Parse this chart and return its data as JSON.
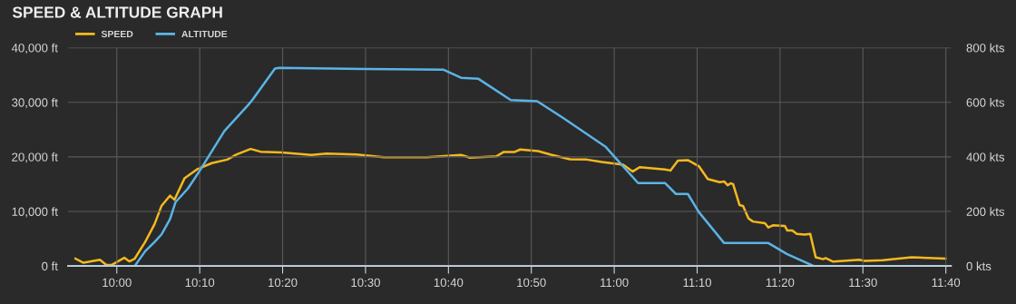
{
  "chart_data": {
    "type": "line",
    "title": "SPEED & ALTITUDE GRAPH",
    "xlim": [
      9.902,
      11.677
    ],
    "xticks": [
      {
        "value": 10.0,
        "label": "10:00"
      },
      {
        "value": 10.1667,
        "label": "10:10"
      },
      {
        "value": 10.3333,
        "label": "10:20"
      },
      {
        "value": 10.5,
        "label": "10:30"
      },
      {
        "value": 10.6667,
        "label": "10:40"
      },
      {
        "value": 10.8333,
        "label": "10:50"
      },
      {
        "value": 11.0,
        "label": "11:00"
      },
      {
        "value": 11.1667,
        "label": "11:10"
      },
      {
        "value": 11.3333,
        "label": "11:20"
      },
      {
        "value": 11.5,
        "label": "11:30"
      },
      {
        "value": 11.6667,
        "label": "11:40"
      }
    ],
    "ylim": [
      0,
      40000
    ],
    "yticks": [
      {
        "value": 0,
        "label": "0 ft"
      },
      {
        "value": 10000,
        "label": "10,000 ft"
      },
      {
        "value": 20000,
        "label": "20,000 ft"
      },
      {
        "value": 30000,
        "label": "30,000 ft"
      },
      {
        "value": 40000,
        "label": "40,000 ft"
      }
    ],
    "y2lim": [
      0,
      800
    ],
    "y2ticks": [
      {
        "value": 0,
        "label": "0 kts"
      },
      {
        "value": 200,
        "label": "200 kts"
      },
      {
        "value": 400,
        "label": "400 kts"
      },
      {
        "value": 600,
        "label": "600 kts"
      },
      {
        "value": 800,
        "label": "800 kts"
      }
    ],
    "grid": true,
    "legend": "top left",
    "line_style": "solid",
    "series": [
      {
        "name": "SPEED",
        "color": "#f5b81e",
        "axis": "y2",
        "x": [
          9.917,
          9.933,
          9.966,
          9.979,
          9.99,
          10.006,
          10.015,
          10.025,
          10.036,
          10.057,
          10.076,
          10.09,
          10.107,
          10.116,
          10.136,
          10.161,
          10.191,
          10.222,
          10.24,
          10.269,
          10.289,
          10.331,
          10.391,
          10.422,
          10.482,
          10.537,
          10.623,
          10.692,
          10.71,
          10.763,
          10.778,
          10.8,
          10.811,
          10.847,
          10.873,
          10.911,
          10.945,
          10.975,
          11.018,
          11.037,
          11.051,
          11.102,
          11.113,
          11.128,
          11.148,
          11.17,
          11.188,
          11.212,
          11.221,
          11.228,
          11.234,
          11.239,
          11.252,
          11.259,
          11.27,
          11.279,
          11.303,
          11.31,
          11.319,
          11.343,
          11.348,
          11.358,
          11.367,
          11.383,
          11.394,
          11.405,
          11.42,
          11.425,
          11.44,
          11.493,
          11.503,
          11.54,
          11.598,
          11.666
        ],
        "values": [
          27,
          12,
          23,
          4,
          4,
          21,
          30,
          17,
          27,
          88,
          154,
          221,
          258,
          243,
          321,
          354,
          377,
          390,
          408,
          429,
          419,
          416,
          407,
          412,
          409,
          399,
          399,
          407,
          397,
          402,
          418,
          418,
          427,
          421,
          408,
          391,
          390,
          381,
          371,
          346,
          362,
          354,
          350,
          386,
          388,
          366,
          319,
          307,
          310,
          296,
          303,
          300,
          223,
          220,
          174,
          163,
          157,
          141,
          149,
          147,
          130,
          130,
          118,
          115,
          118,
          32,
          25,
          29,
          16,
          23,
          19,
          21,
          32,
          27
        ]
      },
      {
        "name": "ALTITUDE",
        "color": "#5ab4e6",
        "x": [
          9.917,
          10.036,
          10.057,
          10.076,
          10.09,
          10.107,
          10.118,
          10.143,
          10.167,
          10.216,
          10.263,
          10.273,
          10.318,
          10.327,
          10.495,
          10.656,
          10.692,
          10.727,
          10.792,
          10.845,
          10.896,
          10.982,
          11.048,
          11.102,
          11.124,
          11.148,
          11.17,
          11.221,
          11.31,
          11.347,
          11.401,
          11.662
        ],
        "values": [
          0,
          0,
          2700,
          4400,
          5800,
          8600,
          11700,
          14200,
          17500,
          24700,
          29400,
          30500,
          36200,
          36300,
          36100,
          36000,
          34500,
          34300,
          30400,
          30200,
          27200,
          21900,
          15200,
          15200,
          13200,
          13200,
          9900,
          4200,
          4200,
          2200,
          0,
          0
        ]
      }
    ]
  }
}
